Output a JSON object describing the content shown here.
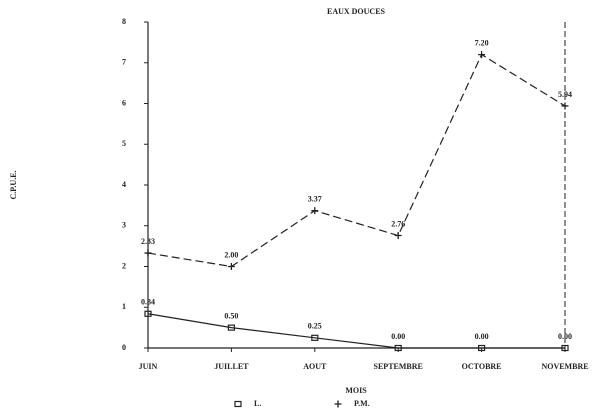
{
  "chart_data": {
    "type": "line",
    "title": "EAUX DOUCES",
    "x_label": "MOIS",
    "y_label": "C.P.U.E.",
    "categories": [
      "JUIN",
      "JUILLET",
      "AOUT",
      "SEPTEMBRE",
      "OCTOBRE",
      "NOVEMBRE"
    ],
    "series": [
      {
        "name": "L.",
        "color": "#222222",
        "marker": "square",
        "dash": false,
        "values": [
          0.84,
          0.5,
          0.25,
          0,
          0,
          0
        ],
        "value_labels": [
          "0.84",
          "0.50",
          "0.25",
          "0.00",
          "0.00",
          "0.00"
        ]
      },
      {
        "name": "P.M.",
        "color": "#222222",
        "marker": "plus",
        "dash": true,
        "values": [
          2.33,
          2,
          3.37,
          2.76,
          7.2,
          5.94
        ],
        "value_labels": [
          "2.33",
          "2.00",
          "3.37",
          "2.76",
          "7.20",
          "5.94"
        ]
      }
    ],
    "ylim": [
      0,
      8
    ],
    "yticks": [
      0,
      1,
      2,
      3,
      4,
      5,
      6,
      7,
      8
    ]
  }
}
